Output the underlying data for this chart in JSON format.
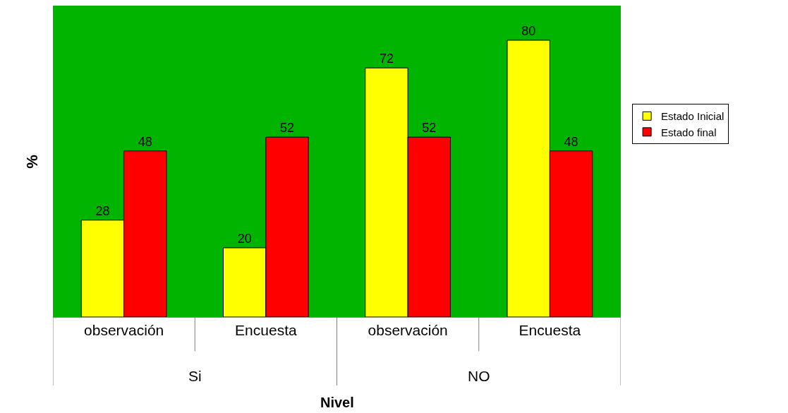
{
  "chart_data": {
    "type": "bar",
    "xlabel": "Nivel",
    "ylabel": "%",
    "categories": [
      "observación",
      "Encuesta",
      "observación",
      "Encuesta"
    ],
    "series": [
      {
        "name": "Estado Inicial",
        "color": "#ffff00",
        "values": [
          28,
          20,
          72,
          80
        ]
      },
      {
        "name": "Estado final",
        "color": "#ff0000",
        "values": [
          48,
          52,
          52,
          48
        ]
      }
    ],
    "annotations": [
      "Si",
      "NO"
    ],
    "ylim": [
      0,
      90
    ],
    "tick_labels": "x",
    "data_labels": true,
    "grid": false,
    "legend": "right"
  }
}
